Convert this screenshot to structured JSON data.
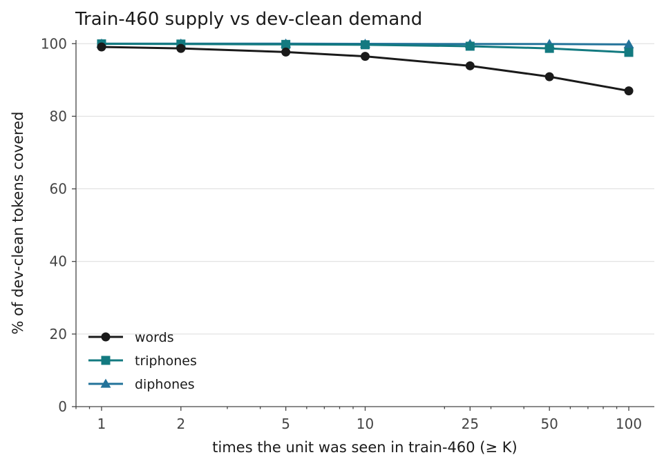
{
  "chart_data": {
    "type": "line",
    "title": "Train-460 supply vs dev-clean demand",
    "xlabel": "times the unit was seen in train-460 (≥ K)",
    "ylabel": "% of dev-clean tokens covered",
    "x_scale": "log",
    "x": [
      1,
      2,
      5,
      10,
      25,
      50,
      100
    ],
    "x_tick_labels": [
      "1",
      "2",
      "5",
      "10",
      "25",
      "50",
      "100"
    ],
    "y_ticks": [
      0,
      20,
      40,
      60,
      80,
      100
    ],
    "y_tick_labels": [
      "0",
      "20",
      "40",
      "60",
      "80",
      "100"
    ],
    "xlim": [
      0.8,
      125
    ],
    "ylim": [
      0,
      101
    ],
    "grid": "horizontal",
    "legend_position": "lower-left",
    "series": [
      {
        "name": "words",
        "values": [
          99.1,
          98.7,
          97.7,
          96.5,
          93.9,
          90.9,
          87.0
        ],
        "color": "#1a1a1a",
        "marker": "circle"
      },
      {
        "name": "triphones",
        "values": [
          99.95,
          99.9,
          99.8,
          99.7,
          99.3,
          98.7,
          97.6
        ],
        "color": "#137a80",
        "marker": "square"
      },
      {
        "name": "diphones",
        "values": [
          100.0,
          100.0,
          100.0,
          99.95,
          99.9,
          99.9,
          99.8
        ],
        "color": "#23739a",
        "marker": "triangle"
      }
    ]
  }
}
